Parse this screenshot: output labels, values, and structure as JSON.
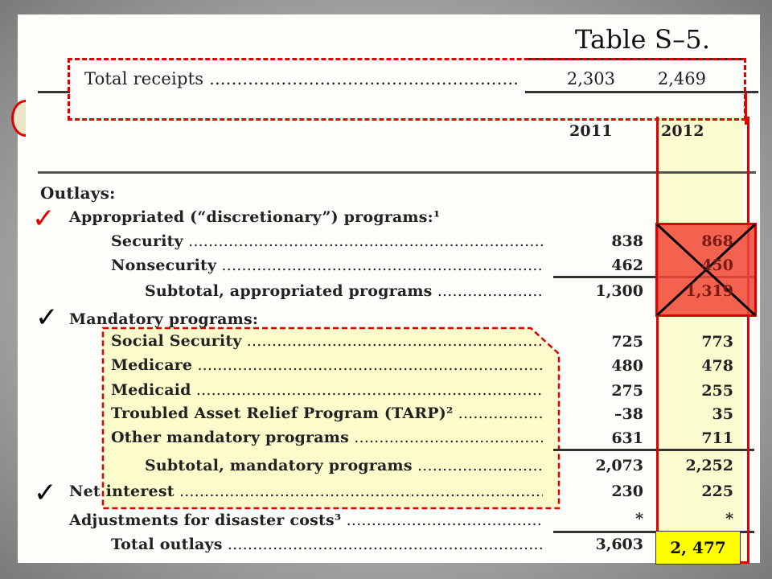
{
  "table_title": "Table S–5.",
  "receipts": {
    "label": "Total receipts",
    "v2011": "2,303",
    "v2012": "2,469"
  },
  "years": [
    "2011",
    "2012"
  ],
  "outlays_heading": "Outlays:",
  "rows": [
    {
      "label": "Appropriated (“discretionary”) programs:¹",
      "v2011": "",
      "v2012": ""
    },
    {
      "label": "Security",
      "v2011": "838",
      "v2012": "868"
    },
    {
      "label": "Nonsecurity",
      "v2011": "462",
      "v2012": "450"
    },
    {
      "label": "Subtotal, appropriated programs",
      "v2011": "1,300",
      "v2012": "1,319"
    },
    {
      "label": "Mandatory programs:",
      "v2011": "",
      "v2012": ""
    },
    {
      "label": "Social Security",
      "v2011": "725",
      "v2012": "773"
    },
    {
      "label": "Medicare",
      "v2011": "480",
      "v2012": "478"
    },
    {
      "label": "Medicaid",
      "v2011": "275",
      "v2012": "255"
    },
    {
      "label": "Troubled Asset Relief Program (TARP)²",
      "v2011": "–38",
      "v2012": "35"
    },
    {
      "label": "Other mandatory programs",
      "v2011": "631",
      "v2012": "711"
    },
    {
      "label": "Subtotal, mandatory programs",
      "v2011": "2,073",
      "v2012": "2,252"
    },
    {
      "label": "Net interest",
      "v2011": "230",
      "v2012": "225"
    },
    {
      "label": "Adjustments for disaster costs³",
      "v2011": "*",
      "v2012": "*"
    },
    {
      "label": "Total outlays",
      "v2011": "3,603",
      "v2012": ""
    }
  ],
  "annotation_total": "2, 477",
  "check_glyph": "✓",
  "colors": {
    "red": "#e00000",
    "highlight_yellow": "#fbfbd0",
    "total_box": "#ffff00",
    "cross_fill": "#f06050"
  }
}
